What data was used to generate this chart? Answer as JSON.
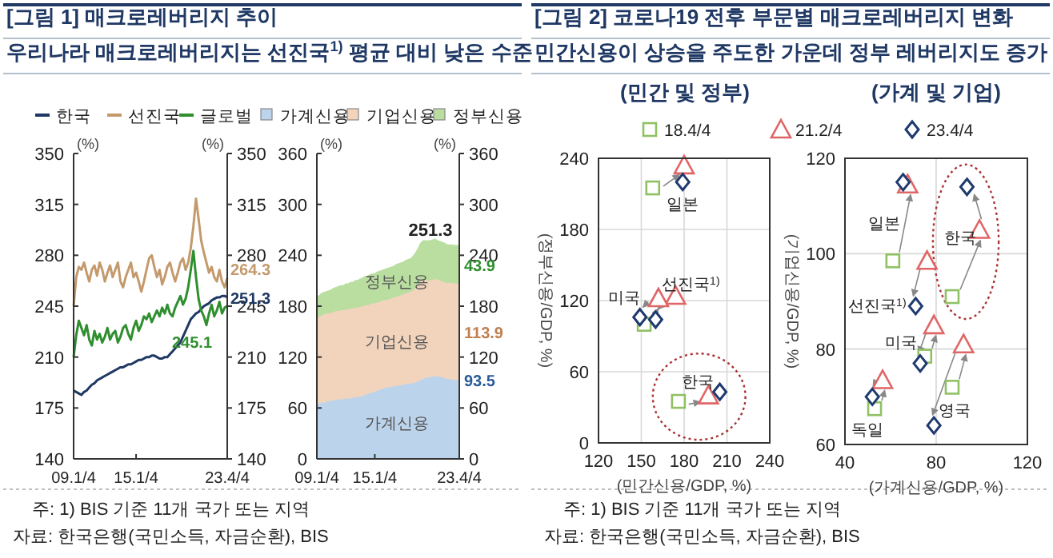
{
  "chart_data": [
    {
      "type": "line",
      "title": "[그림 1] 매크로레버리지 추이",
      "subtitle": "우리나라 매크로레버리지는 선진국$^{1)}$ 평균 대비 낮은 수준",
      "ylabel": "(%)",
      "y2label": "(%)",
      "legend": "top",
      "categories": [
        "09.1/4",
        null,
        null,
        null,
        null,
        null,
        null,
        null,
        null,
        null,
        null,
        null,
        null,
        null,
        null,
        null,
        null,
        null,
        null,
        null,
        null,
        null,
        null,
        null,
        "15.1/4",
        null,
        null,
        null,
        null,
        null,
        null,
        null,
        null,
        null,
        null,
        null,
        null,
        null,
        null,
        null,
        null,
        null,
        null,
        null,
        null,
        null,
        null,
        null,
        null,
        null,
        null,
        null,
        null,
        null,
        null,
        null,
        null,
        null,
        null,
        "23.4/4"
      ],
      "ylim": [
        140,
        350
      ],
      "yticks": [
        140,
        175,
        210,
        245,
        280,
        315,
        350
      ],
      "y2lim": [
        140,
        350
      ],
      "y2ticks": [
        140,
        175,
        210,
        245,
        280,
        315,
        350
      ],
      "series": [
        {
          "name": "한국",
          "color": "#1f3864",
          "values": [
            187,
            186,
            185,
            184,
            186,
            187,
            189,
            191,
            192,
            194,
            195,
            196,
            197,
            198,
            199,
            200,
            201,
            202,
            203,
            203,
            204,
            205,
            205,
            206,
            207,
            208,
            208,
            209,
            210,
            210,
            211,
            211,
            210,
            209,
            209,
            210,
            210,
            212,
            214,
            216,
            218,
            220,
            224,
            228,
            232,
            236,
            238,
            240,
            241,
            243,
            245,
            246,
            247,
            249,
            250,
            251,
            251,
            252,
            252,
            251.3
          ]
        },
        {
          "name": "선진국",
          "color": "#c49a6c",
          "values": [
            245,
            265,
            272,
            270,
            275,
            268,
            262,
            270,
            273,
            266,
            275,
            270,
            262,
            268,
            273,
            265,
            270,
            275,
            262,
            258,
            265,
            270,
            275,
            265,
            268,
            262,
            255,
            262,
            270,
            278,
            280,
            272,
            265,
            270,
            260,
            265,
            272,
            275,
            268,
            262,
            268,
            275,
            278,
            270,
            275,
            285,
            300,
            319,
            305,
            290,
            282,
            275,
            268,
            272,
            265,
            262,
            270,
            262,
            258,
            264.3
          ]
        },
        {
          "name": "글로벌",
          "color": "#2f8f2f",
          "values": [
            210,
            225,
            235,
            230,
            225,
            232,
            222,
            218,
            228,
            222,
            226,
            220,
            224,
            230,
            222,
            226,
            228,
            220,
            224,
            230,
            232,
            226,
            222,
            230,
            235,
            228,
            232,
            238,
            236,
            240,
            234,
            238,
            242,
            238,
            244,
            240,
            246,
            240,
            238,
            244,
            248,
            252,
            246,
            250,
            258,
            270,
            283,
            265,
            250,
            242,
            238,
            232,
            240,
            246,
            238,
            242,
            248,
            240,
            244,
            245.1
          ]
        }
      ],
      "annotations": [
        "주: 1) BIS 기준 11개 국가 또는 지역",
        "자료: 한국은행(국민소득, 자금순환), BIS",
        {
          "text": "251.3",
          "x": "23.4/4",
          "y": 251.3
        },
        {
          "text": "264.3",
          "x": "23.4/4",
          "y": 264.3
        },
        {
          "text": "245.1",
          "x": "23.4/4",
          "y": 245.1
        }
      ]
    },
    {
      "type": "area",
      "stacked": true,
      "ylabel": "(%)",
      "y2label": "(%)",
      "legend": "top",
      "categories": [
        "09.1/4",
        null,
        null,
        null,
        null,
        null,
        null,
        null,
        null,
        null,
        null,
        null,
        null,
        null,
        null,
        null,
        null,
        null,
        null,
        null,
        null,
        null,
        null,
        null,
        "15.1/4",
        null,
        null,
        null,
        null,
        null,
        null,
        null,
        null,
        null,
        null,
        null,
        null,
        null,
        null,
        null,
        null,
        null,
        null,
        null,
        null,
        null,
        null,
        null,
        null,
        null,
        null,
        null,
        null,
        null,
        null,
        null,
        null,
        null,
        null,
        "23.4/4"
      ],
      "ylim": [
        0,
        360
      ],
      "yticks": [
        0,
        60,
        120,
        180,
        240,
        300,
        360
      ],
      "y2lim": [
        0,
        360
      ],
      "y2ticks": [
        0,
        60,
        120,
        180,
        240,
        300,
        360
      ],
      "series": [
        {
          "name": "가계신용",
          "color": "#bcd3ec",
          "values": [
            66,
            66,
            67,
            67,
            68,
            69,
            69,
            70,
            70,
            71,
            71,
            71,
            72,
            72,
            72,
            73,
            73,
            74,
            74,
            75,
            76,
            77,
            78,
            79,
            80,
            81,
            82,
            83,
            84,
            85,
            85,
            86,
            86,
            87,
            87,
            88,
            88,
            89,
            89,
            90,
            90,
            91,
            92,
            94,
            95,
            96,
            97,
            97,
            98,
            98,
            98,
            97,
            97,
            96,
            95,
            95,
            94,
            94,
            93.5,
            93.5
          ]
        },
        {
          "name": "기업신용",
          "color": "#f2d4bd",
          "values": [
            104,
            102,
            103,
            104,
            104,
            103,
            104,
            104,
            105,
            104,
            105,
            105,
            105,
            105,
            106,
            105,
            106,
            105,
            106,
            106,
            106,
            105,
            105,
            105,
            104,
            104,
            104,
            104,
            104,
            103,
            104,
            104,
            105,
            105,
            106,
            106,
            107,
            107,
            108,
            108,
            110,
            112,
            114,
            116,
            117,
            116,
            114,
            114,
            114,
            115,
            114,
            114,
            113,
            113,
            113,
            113,
            114,
            113.5,
            113.9,
            113.9
          ]
        },
        {
          "name": "정부신용",
          "color": "#b9dea0",
          "values": [
            22,
            24,
            25,
            25,
            25,
            26,
            26,
            27,
            27,
            28,
            28,
            28,
            29,
            29,
            30,
            30,
            31,
            31,
            32,
            32,
            33,
            33,
            34,
            34,
            34,
            35,
            35,
            35,
            35,
            36,
            36,
            36,
            36,
            37,
            37,
            37,
            37,
            38,
            38,
            38,
            39,
            40,
            42,
            44,
            45,
            45,
            46,
            46,
            46,
            46,
            45,
            45,
            45,
            45,
            44,
            44,
            44,
            44,
            44,
            43.9
          ]
        }
      ],
      "annotations": [
        {
          "text": "251.3",
          "x": "23.4/4",
          "y": 251.3
        },
        {
          "text": "43.9",
          "x": "23.4/4",
          "y": 229
        },
        {
          "text": "113.9",
          "x": "23.4/4",
          "y": 150
        },
        {
          "text": "93.5",
          "x": "23.4/4",
          "y": 93.5
        }
      ]
    },
    {
      "type": "scatter",
      "title": "[그림 2] 코로나19 전후 부문별 매크로레버리지 변화",
      "subtitle": "민간신용이 상승을 주도한 가운데 정부 레버리지도 증가",
      "xlabel": "(민간신용/GDP, %)",
      "ylabel": "(정부신용/GDP, %)",
      "legend": "top",
      "grid": true,
      "xlim": [
        120,
        240
      ],
      "xticks": [
        120,
        150,
        180,
        210,
        240
      ],
      "ylim": [
        0,
        240
      ],
      "yticks": [
        0,
        60,
        120,
        180,
        240
      ],
      "series": [
        {
          "name": "18.4/4",
          "color": "#8fc163",
          "marker": "square",
          "x": [
            158,
            null,
            152,
            176
          ],
          "values": [
            215,
            null,
            100,
            35
          ]
        },
        {
          "name": "21.2/4",
          "color": "#e06666",
          "marker": "triangle",
          "x": [
            180,
            174,
            162,
            197
          ],
          "values": [
            234,
            124,
            122,
            40
          ]
        },
        {
          "name": "23.4/4",
          "color": "#1f3a6e",
          "marker": "diamond",
          "x": [
            179,
            160,
            149,
            205
          ],
          "values": [
            220,
            104,
            106,
            43
          ]
        }
      ],
      "annotations": [
        "(민간 및 정부)",
        "주: 1) BIS 기준 11개 국가 또는 지역",
        "자료: 한국은행(국민소득, 자금순환), BIS",
        {
          "text": "일본",
          "x": 179,
          "y": 220
        },
        {
          "text": "미국",
          "x": 149,
          "y": 106
        },
        {
          "text": "선진국$^{1)}$",
          "x": 160,
          "y": 104
        },
        {
          "text": "한국",
          "x": 205,
          "y": 43
        }
      ]
    },
    {
      "type": "scatter",
      "title": "(가계 및 기업)",
      "xlabel": "(가계신용/GDP, %)",
      "ylabel": "(기업신용/GDP, %)",
      "grid": true,
      "xlim": [
        40,
        120
      ],
      "xticks": [
        40,
        80,
        120
      ],
      "ylim": [
        60,
        120
      ],
      "yticks": [
        60,
        80,
        100,
        120
      ],
      "series": [
        {
          "color": "#8fc163",
          "marker": "square",
          "x": [
            61,
            null,
            87,
            75,
            87,
            53
          ],
          "values": [
            98.5,
            null,
            91,
            78.5,
            72,
            67.5
          ]
        },
        {
          "color": "#e06666",
          "marker": "triangle",
          "x": [
            67.5,
            76,
            99,
            79,
            92,
            56.5
          ],
          "values": [
            114.5,
            98.5,
            105,
            85,
            81,
            73.5
          ]
        },
        {
          "color": "#1f3a6e",
          "marker": "diamond",
          "x": [
            65.5,
            71,
            93.5,
            73,
            79,
            52
          ],
          "values": [
            115,
            89,
            114,
            77,
            64,
            70
          ]
        }
      ],
      "annotations": [
        {
          "text": "일본",
          "x": 65.5,
          "y": 115
        },
        {
          "text": "한국",
          "x": 93.5,
          "y": 114
        },
        {
          "text": "선진국$^{1)}$",
          "x": 71,
          "y": 89
        },
        {
          "text": "미국",
          "x": 73,
          "y": 77
        },
        {
          "text": "영국",
          "x": 79,
          "y": 64
        },
        {
          "text": "독일",
          "x": 52,
          "y": 70
        }
      ]
    }
  ]
}
